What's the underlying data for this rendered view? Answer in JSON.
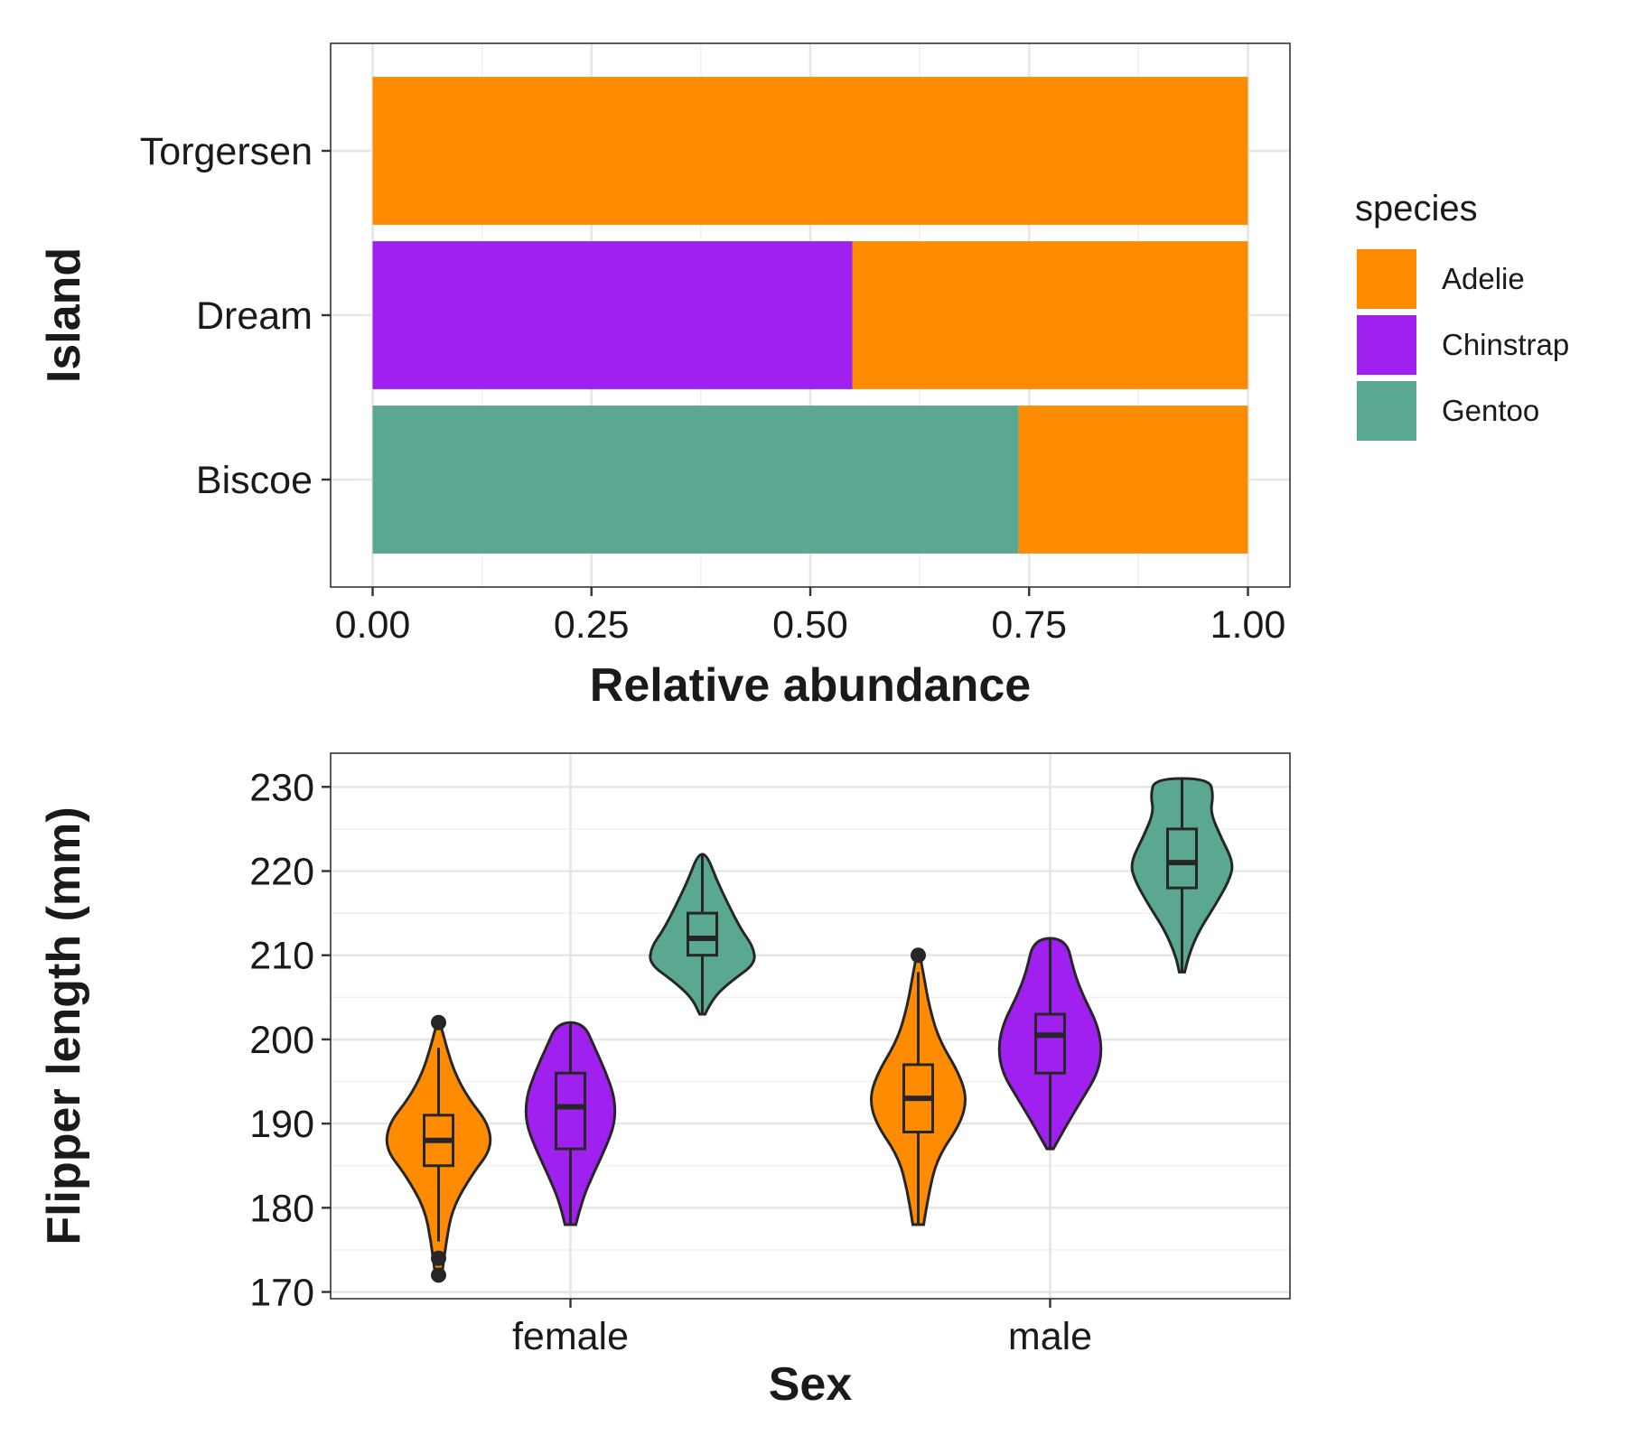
{
  "colors": {
    "Adelie": "#FF8C00",
    "Chinstrap": "#A020F0",
    "Gentoo": "#5BA892"
  },
  "chart_data": [
    {
      "type": "bar",
      "orientation": "horizontal",
      "stacked": true,
      "title": "",
      "xlabel": "Relative abundance",
      "ylabel": "Island",
      "xlim": [
        0,
        1
      ],
      "x_ticks": [
        "0.00",
        "0.25",
        "0.50",
        "0.75",
        "1.00"
      ],
      "categories": [
        "Biscoe",
        "Dream",
        "Torgersen"
      ],
      "series": [
        {
          "name": "Gentoo",
          "values": [
            0.738,
            0,
            0
          ]
        },
        {
          "name": "Chinstrap",
          "values": [
            0,
            0.548,
            0
          ]
        },
        {
          "name": "Adelie",
          "values": [
            0.262,
            0.452,
            1.0
          ]
        }
      ],
      "legend": {
        "title": "species",
        "position": "right",
        "entries": [
          "Adelie",
          "Chinstrap",
          "Gentoo"
        ]
      },
      "grid": true
    },
    {
      "type": "violin",
      "title": "",
      "xlabel": "Sex",
      "ylabel": "Flipper length (mm)",
      "categories": [
        "female",
        "male"
      ],
      "ylim": [
        170,
        231
      ],
      "y_ticks": [
        170,
        180,
        190,
        200,
        210,
        220,
        230
      ],
      "grid": true,
      "groups": [
        {
          "sex": "female",
          "species": "Adelie",
          "min": 176,
          "q1": 185,
          "median": 188,
          "q3": 191,
          "max": 199,
          "outliers": [
            202,
            174,
            172
          ],
          "violin_min": 172,
          "violin_max": 202,
          "profile": [
            [
              172,
              0.06
            ],
            [
              176,
              0.14
            ],
            [
              180,
              0.26
            ],
            [
              184,
              0.62
            ],
            [
              187,
              0.98
            ],
            [
              190,
              0.92
            ],
            [
              193,
              0.55
            ],
            [
              196,
              0.3
            ],
            [
              199,
              0.15
            ],
            [
              202,
              0.03
            ]
          ]
        },
        {
          "sex": "female",
          "species": "Chinstrap",
          "min": 178,
          "q1": 187,
          "median": 192,
          "q3": 196,
          "max": 202,
          "outliers": [],
          "violin_min": 178,
          "violin_max": 202,
          "profile": [
            [
              178,
              0.1
            ],
            [
              181,
              0.22
            ],
            [
              184,
              0.42
            ],
            [
              187,
              0.64
            ],
            [
              190,
              0.82
            ],
            [
              193,
              0.82
            ],
            [
              196,
              0.66
            ],
            [
              199,
              0.45
            ],
            [
              202,
              0.24
            ]
          ]
        },
        {
          "sex": "female",
          "species": "Gentoo",
          "min": 203,
          "q1": 210,
          "median": 212,
          "q3": 215,
          "max": 222,
          "outliers": [],
          "violin_min": 203,
          "violin_max": 222,
          "profile": [
            [
              203,
              0.05
            ],
            [
              205,
              0.2
            ],
            [
              207,
              0.55
            ],
            [
              209,
              0.98
            ],
            [
              211,
              0.94
            ],
            [
              213,
              0.72
            ],
            [
              216,
              0.48
            ],
            [
              219,
              0.26
            ],
            [
              222,
              0.08
            ]
          ]
        },
        {
          "sex": "male",
          "species": "Adelie",
          "min": 178,
          "q1": 189,
          "median": 193,
          "q3": 197,
          "max": 208,
          "outliers": [
            210
          ],
          "violin_min": 178,
          "violin_max": 210,
          "profile": [
            [
              178,
              0.1
            ],
            [
              182,
              0.2
            ],
            [
              186,
              0.36
            ],
            [
              190,
              0.78
            ],
            [
              193,
              0.9
            ],
            [
              196,
              0.75
            ],
            [
              200,
              0.38
            ],
            [
              204,
              0.2
            ],
            [
              208,
              0.09
            ],
            [
              210,
              0.03
            ]
          ]
        },
        {
          "sex": "male",
          "species": "Chinstrap",
          "min": 187,
          "q1": 196,
          "median": 200.5,
          "q3": 203,
          "max": 212,
          "outliers": [],
          "violin_min": 187,
          "violin_max": 212,
          "profile": [
            [
              187,
              0.06
            ],
            [
              190,
              0.32
            ],
            [
              193,
              0.6
            ],
            [
              196,
              0.88
            ],
            [
              199,
              0.96
            ],
            [
              202,
              0.86
            ],
            [
              205,
              0.62
            ],
            [
              208,
              0.44
            ],
            [
              212,
              0.3
            ]
          ]
        },
        {
          "sex": "male",
          "species": "Gentoo",
          "min": 208,
          "q1": 218,
          "median": 221,
          "q3": 225,
          "max": 231,
          "outliers": [],
          "violin_min": 208,
          "violin_max": 231,
          "profile": [
            [
              208,
              0.05
            ],
            [
              210,
              0.12
            ],
            [
              213,
              0.32
            ],
            [
              216,
              0.62
            ],
            [
              219,
              0.88
            ],
            [
              221,
              0.95
            ],
            [
              224,
              0.72
            ],
            [
              227,
              0.52
            ],
            [
              229,
              0.58
            ],
            [
              231,
              0.5
            ]
          ]
        }
      ]
    }
  ]
}
